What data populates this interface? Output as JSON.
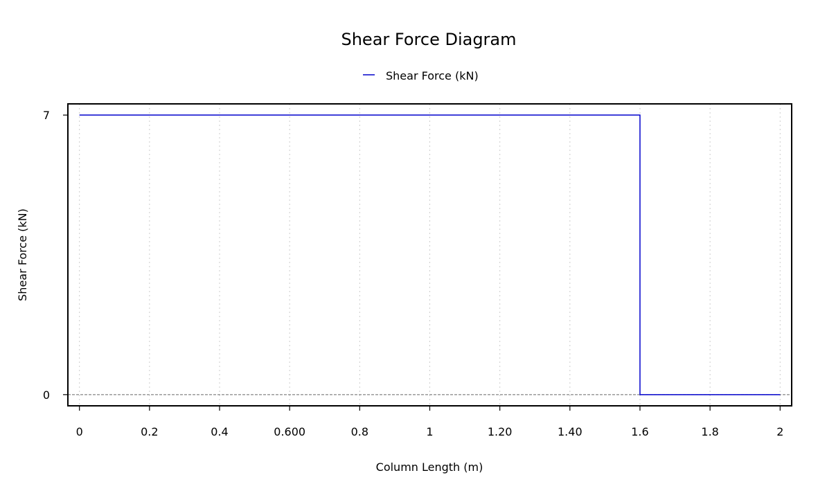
{
  "chart_data": {
    "type": "line",
    "title": "Shear Force Diagram",
    "xlabel": "Column Length (m)",
    "ylabel": "Shear Force (kN)",
    "xlim": [
      -0.033,
      2.033
    ],
    "ylim": [
      -0.28,
      7.28
    ],
    "x_ticks": [
      0,
      0.2,
      0.4,
      0.6,
      0.8,
      1,
      1.2,
      1.4,
      1.6,
      1.8,
      2
    ],
    "x_tick_labels": [
      "0",
      "0.2",
      "0.4",
      "0.600",
      "0.8",
      "1",
      "1.20",
      "1.40",
      "1.6",
      "1.8",
      "2"
    ],
    "y_ticks": [
      0,
      7
    ],
    "y_tick_labels": [
      "0",
      "7"
    ],
    "grid": "vertical dotted",
    "legend_position": "top-center",
    "baseline_y": 0,
    "series": [
      {
        "name": "Shear Force (kN)",
        "color": "#0000cc",
        "x": [
          0,
          1.6,
          1.6,
          2
        ],
        "y": [
          7,
          7,
          0,
          0
        ]
      }
    ]
  }
}
